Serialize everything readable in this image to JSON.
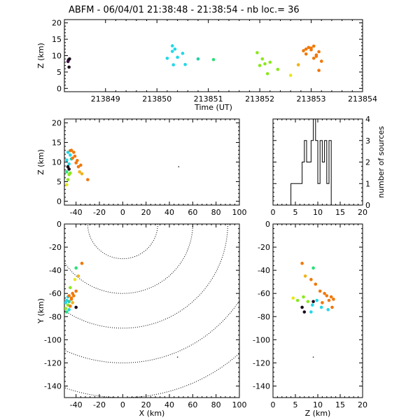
{
  "title": "ABFM - 06/04/01 21:38:48 - 21:38:54 - nb loc.=       36",
  "colors": {
    "black": "#1c0d1c",
    "purple": "#3a1040",
    "cyan": "#22d8e8",
    "teal": "#22d0a8",
    "green": "#28e07a",
    "lime": "#8ae81c",
    "yellow": "#e8e81c",
    "gold": "#f0b21c",
    "orange": "#f0780a",
    "axis": "#000000"
  },
  "chart_data": [
    {
      "type": "scatter",
      "id": "time-z",
      "xlabel": "Time (UT)",
      "ylabel": "Z (km)",
      "xlim": [
        213848.2,
        213854
      ],
      "ylim": [
        -1,
        21
      ],
      "xticks": [
        213849,
        213850,
        213851,
        213852,
        213853,
        213854
      ],
      "yticks": [
        0,
        5,
        10,
        15,
        20
      ],
      "points": [
        {
          "x": 213848.28,
          "y": 8.7,
          "c": "black"
        },
        {
          "x": 213848.3,
          "y": 9.0,
          "c": "black"
        },
        {
          "x": 213848.27,
          "y": 8.2,
          "c": "purple"
        },
        {
          "x": 213848.29,
          "y": 6.5,
          "c": "black"
        },
        {
          "x": 213850.2,
          "y": 9.2,
          "c": "cyan"
        },
        {
          "x": 213850.3,
          "y": 11.3,
          "c": "cyan"
        },
        {
          "x": 213850.35,
          "y": 12.0,
          "c": "cyan"
        },
        {
          "x": 213850.5,
          "y": 10.7,
          "c": "cyan"
        },
        {
          "x": 213850.4,
          "y": 9.5,
          "c": "cyan"
        },
        {
          "x": 213850.32,
          "y": 7.2,
          "c": "cyan"
        },
        {
          "x": 213850.55,
          "y": 7.3,
          "c": "cyan"
        },
        {
          "x": 213850.3,
          "y": 13.0,
          "c": "cyan"
        },
        {
          "x": 213850.8,
          "y": 9.0,
          "c": "teal"
        },
        {
          "x": 213851.1,
          "y": 8.8,
          "c": "green"
        },
        {
          "x": 213851.95,
          "y": 10.9,
          "c": "lime"
        },
        {
          "x": 213852.05,
          "y": 9.0,
          "c": "lime"
        },
        {
          "x": 213852.1,
          "y": 7.5,
          "c": "lime"
        },
        {
          "x": 213852.0,
          "y": 7.0,
          "c": "lime"
        },
        {
          "x": 213852.2,
          "y": 8.0,
          "c": "lime"
        },
        {
          "x": 213852.15,
          "y": 4.5,
          "c": "lime"
        },
        {
          "x": 213852.35,
          "y": 5.8,
          "c": "lime"
        },
        {
          "x": 213852.6,
          "y": 4.0,
          "c": "yellow"
        },
        {
          "x": 213852.75,
          "y": 7.2,
          "c": "gold"
        },
        {
          "x": 213852.9,
          "y": 10.5,
          "c": "orange"
        },
        {
          "x": 213852.95,
          "y": 12.5,
          "c": "orange"
        },
        {
          "x": 213853.0,
          "y": 12.3,
          "c": "orange"
        },
        {
          "x": 213853.05,
          "y": 12.9,
          "c": "orange"
        },
        {
          "x": 213853.1,
          "y": 9.8,
          "c": "orange"
        },
        {
          "x": 213853.15,
          "y": 11.2,
          "c": "orange"
        },
        {
          "x": 213852.85,
          "y": 11.5,
          "c": "orange"
        },
        {
          "x": 213853.2,
          "y": 8.3,
          "c": "orange"
        },
        {
          "x": 213853.05,
          "y": 9.2,
          "c": "orange"
        },
        {
          "x": 213853.15,
          "y": 5.5,
          "c": "orange"
        },
        {
          "x": 213853.0,
          "y": 11.8,
          "c": "orange"
        },
        {
          "x": 213853.1,
          "y": 10.2,
          "c": "orange"
        },
        {
          "x": 213852.9,
          "y": 12.0,
          "c": "orange"
        }
      ]
    },
    {
      "type": "scatter",
      "id": "x-z",
      "xlabel": "",
      "ylabel": "Z (km)",
      "xlim": [
        -50,
        100
      ],
      "ylim": [
        -1,
        21
      ],
      "xticks": [
        -40,
        -20,
        0,
        20,
        40,
        60,
        80,
        100
      ],
      "yticks": [
        0,
        5,
        10,
        15,
        20
      ],
      "points": [
        {
          "x": -47,
          "y": 12.5,
          "c": "cyan"
        },
        {
          "x": -45,
          "y": 11.8,
          "c": "cyan"
        },
        {
          "x": -48,
          "y": 10.5,
          "c": "cyan"
        },
        {
          "x": -46,
          "y": 9.5,
          "c": "cyan"
        },
        {
          "x": -44,
          "y": 10.8,
          "c": "teal"
        },
        {
          "x": -47,
          "y": 8.8,
          "c": "black"
        },
        {
          "x": -46,
          "y": 8.2,
          "c": "black"
        },
        {
          "x": -48,
          "y": 7.5,
          "c": "green"
        },
        {
          "x": -46,
          "y": 6.8,
          "c": "lime"
        },
        {
          "x": -47,
          "y": 5.5,
          "c": "lime"
        },
        {
          "x": -48,
          "y": 4.2,
          "c": "yellow"
        },
        {
          "x": -45,
          "y": 7.2,
          "c": "lime"
        },
        {
          "x": -44,
          "y": 13.0,
          "c": "orange"
        },
        {
          "x": -42,
          "y": 12.5,
          "c": "orange"
        },
        {
          "x": -41,
          "y": 11.5,
          "c": "orange"
        },
        {
          "x": -43,
          "y": 11.0,
          "c": "orange"
        },
        {
          "x": -40,
          "y": 9.8,
          "c": "orange"
        },
        {
          "x": -38,
          "y": 8.8,
          "c": "orange"
        },
        {
          "x": -36,
          "y": 9.2,
          "c": "orange"
        },
        {
          "x": -37,
          "y": 7.5,
          "c": "gold"
        },
        {
          "x": -35,
          "y": 7.0,
          "c": "gold"
        },
        {
          "x": -30,
          "y": 5.5,
          "c": "orange"
        },
        {
          "x": -39,
          "y": 10.4,
          "c": "orange"
        },
        {
          "x": -45,
          "y": 12.9,
          "c": "orange"
        },
        {
          "x": 48,
          "y": 8.8,
          "c": "black",
          "small": true
        }
      ]
    },
    {
      "type": "histogram",
      "id": "z-hist",
      "xlabel": "",
      "ylabel": "number of sources",
      "xlim": [
        0,
        20
      ],
      "ylim": [
        0,
        4
      ],
      "xticks": [
        0,
        5,
        10,
        15,
        20
      ],
      "yticks": [
        0,
        1,
        2,
        3,
        4
      ],
      "bin_width": 0.5,
      "bins": [
        {
          "x": 0,
          "v": 0
        },
        {
          "x": 4,
          "v": 1
        },
        {
          "x": 5.5,
          "v": 1
        },
        {
          "x": 6.5,
          "v": 2
        },
        {
          "x": 7,
          "v": 3
        },
        {
          "x": 7.5,
          "v": 2
        },
        {
          "x": 8.5,
          "v": 3
        },
        {
          "x": 9,
          "v": 4
        },
        {
          "x": 9.5,
          "v": 3
        },
        {
          "x": 10,
          "v": 1
        },
        {
          "x": 10.5,
          "v": 3
        },
        {
          "x": 11,
          "v": 2
        },
        {
          "x": 11.5,
          "v": 3
        },
        {
          "x": 12,
          "v": 1
        },
        {
          "x": 12.5,
          "v": 3
        },
        {
          "x": 13,
          "v": 0
        }
      ]
    },
    {
      "type": "scatter",
      "id": "x-y",
      "xlabel": "X (km)",
      "ylabel": "Y (km)",
      "xlim": [
        -50,
        100
      ],
      "ylim": [
        -150,
        0
      ],
      "xticks": [
        -40,
        -20,
        0,
        20,
        40,
        60,
        80,
        100
      ],
      "yticks": [
        -140,
        -120,
        -100,
        -80,
        -60,
        -40,
        -20,
        0
      ],
      "range_circles_km": [
        30,
        60,
        90,
        120,
        150,
        180
      ],
      "points": [
        {
          "x": -35,
          "y": -34,
          "c": "orange"
        },
        {
          "x": -40,
          "y": -38,
          "c": "green"
        },
        {
          "x": -38,
          "y": -45,
          "c": "gold"
        },
        {
          "x": -41,
          "y": -48,
          "c": "yellow"
        },
        {
          "x": -45,
          "y": -55,
          "c": "lime"
        },
        {
          "x": -40,
          "y": -58,
          "c": "orange"
        },
        {
          "x": -43,
          "y": -60,
          "c": "orange"
        },
        {
          "x": -42,
          "y": -62,
          "c": "orange"
        },
        {
          "x": -47,
          "y": -63,
          "c": "cyan"
        },
        {
          "x": -44,
          "y": -65,
          "c": "orange"
        },
        {
          "x": -48,
          "y": -66,
          "c": "cyan"
        },
        {
          "x": -46,
          "y": -67,
          "c": "teal"
        },
        {
          "x": -49,
          "y": -68,
          "c": "cyan"
        },
        {
          "x": -47,
          "y": -70,
          "c": "lime"
        },
        {
          "x": -45,
          "y": -71,
          "c": "orange"
        },
        {
          "x": -40,
          "y": -72,
          "c": "black"
        },
        {
          "x": -43,
          "y": -68,
          "c": "gold"
        },
        {
          "x": -46,
          "y": -74,
          "c": "cyan"
        },
        {
          "x": -48,
          "y": -76,
          "c": "green"
        },
        {
          "x": -49,
          "y": -73,
          "c": "lime"
        },
        {
          "x": -46,
          "y": -62,
          "c": "orange"
        },
        {
          "x": -44,
          "y": -64,
          "c": "orange"
        },
        {
          "x": 47,
          "y": -115,
          "c": "black",
          "small": true
        }
      ]
    },
    {
      "type": "scatter",
      "id": "z-y",
      "xlabel": "Z (km)",
      "ylabel": "",
      "xlim": [
        0,
        20
      ],
      "ylim": [
        -150,
        0
      ],
      "xticks": [
        0,
        5,
        10,
        15,
        20
      ],
      "yticks": [
        -140,
        -120,
        -100,
        -80,
        -60,
        -40,
        -20,
        0
      ],
      "points": [
        {
          "x": 6.5,
          "y": -34,
          "c": "orange"
        },
        {
          "x": 9.0,
          "y": -38,
          "c": "green"
        },
        {
          "x": 7.2,
          "y": -45,
          "c": "gold"
        },
        {
          "x": 8.5,
          "y": -48,
          "c": "orange"
        },
        {
          "x": 9.5,
          "y": -52,
          "c": "orange"
        },
        {
          "x": 10.5,
          "y": -58,
          "c": "orange"
        },
        {
          "x": 11.5,
          "y": -60,
          "c": "orange"
        },
        {
          "x": 12.0,
          "y": -62,
          "c": "orange"
        },
        {
          "x": 13.0,
          "y": -63,
          "c": "orange"
        },
        {
          "x": 12.5,
          "y": -66,
          "c": "orange"
        },
        {
          "x": 13.5,
          "y": -65,
          "c": "orange"
        },
        {
          "x": 11.0,
          "y": -68,
          "c": "orange"
        },
        {
          "x": 4.5,
          "y": -64,
          "c": "yellow"
        },
        {
          "x": 5.5,
          "y": -66,
          "c": "lime"
        },
        {
          "x": 6.8,
          "y": -63,
          "c": "lime"
        },
        {
          "x": 7.8,
          "y": -67,
          "c": "lime"
        },
        {
          "x": 6.5,
          "y": -72,
          "c": "black"
        },
        {
          "x": 8.8,
          "y": -70,
          "c": "cyan"
        },
        {
          "x": 9.8,
          "y": -66,
          "c": "cyan"
        },
        {
          "x": 10.8,
          "y": -72,
          "c": "cyan"
        },
        {
          "x": 12.3,
          "y": -74,
          "c": "cyan"
        },
        {
          "x": 8.5,
          "y": -76,
          "c": "cyan"
        },
        {
          "x": 7.0,
          "y": -76,
          "c": "black"
        },
        {
          "x": 9.0,
          "y": -67,
          "c": "black"
        },
        {
          "x": 13.2,
          "y": -72,
          "c": "orange"
        },
        {
          "x": 9.0,
          "y": -115,
          "c": "black",
          "small": true
        }
      ]
    }
  ]
}
